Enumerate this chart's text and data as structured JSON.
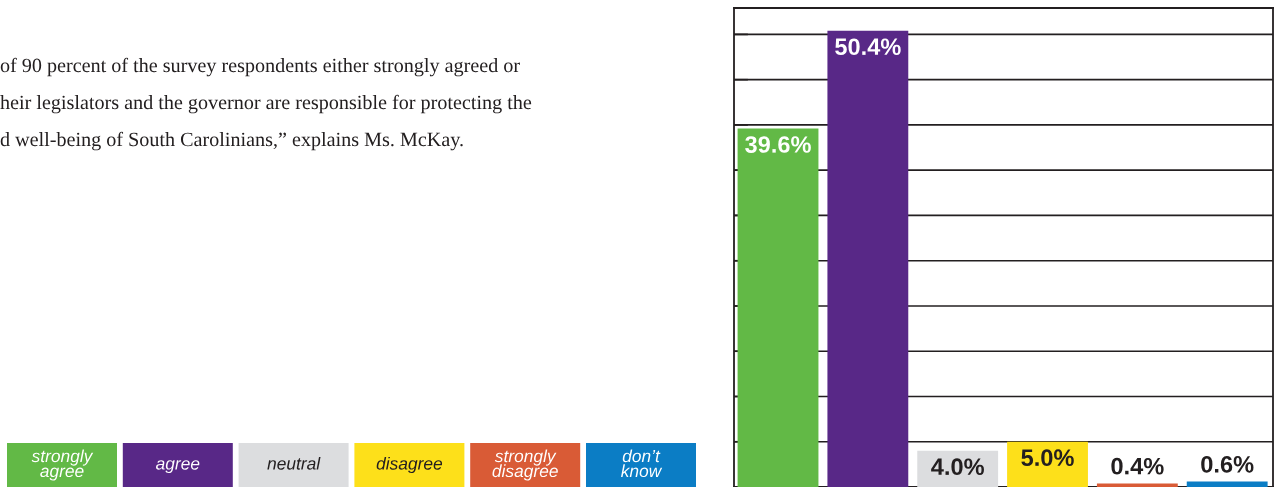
{
  "chart_data": {
    "type": "bar",
    "categories": [
      null
    ],
    "series": [
      {
        "name": "strongly agree",
        "color": "#62b946",
        "values": [
          39.6
        ],
        "value_labels": [
          "39.6%"
        ]
      },
      {
        "name": "agree",
        "color": "#582887",
        "values": [
          50.4
        ],
        "value_labels": [
          "50.4%"
        ]
      },
      {
        "name": "neutral",
        "color": "#dcdddf",
        "values": [
          4.0
        ],
        "value_labels": [
          "4.0%"
        ]
      },
      {
        "name": "disagree",
        "color": "#fde01a",
        "values": [
          5.0
        ],
        "value_labels": [
          "5.0%"
        ]
      },
      {
        "name": "strongly disagree",
        "color": "#d95b36",
        "values": [
          0.4
        ],
        "value_labels": [
          "0.4%"
        ]
      },
      {
        "name": "don’t know",
        "color": "#0b7dc5",
        "values": [
          0.6
        ],
        "value_labels": [
          "0.6%"
        ]
      }
    ],
    "tick_labels": false,
    "grid": "y",
    "legend": "left",
    "annotations": [
      "of 90 percent of the survey respondents either strongly agreed or",
      "heir legislators and the governor are responsible for protecting the",
      "d well-being of South Carolinians,” explains Ms. McKay."
    ]
  }
}
